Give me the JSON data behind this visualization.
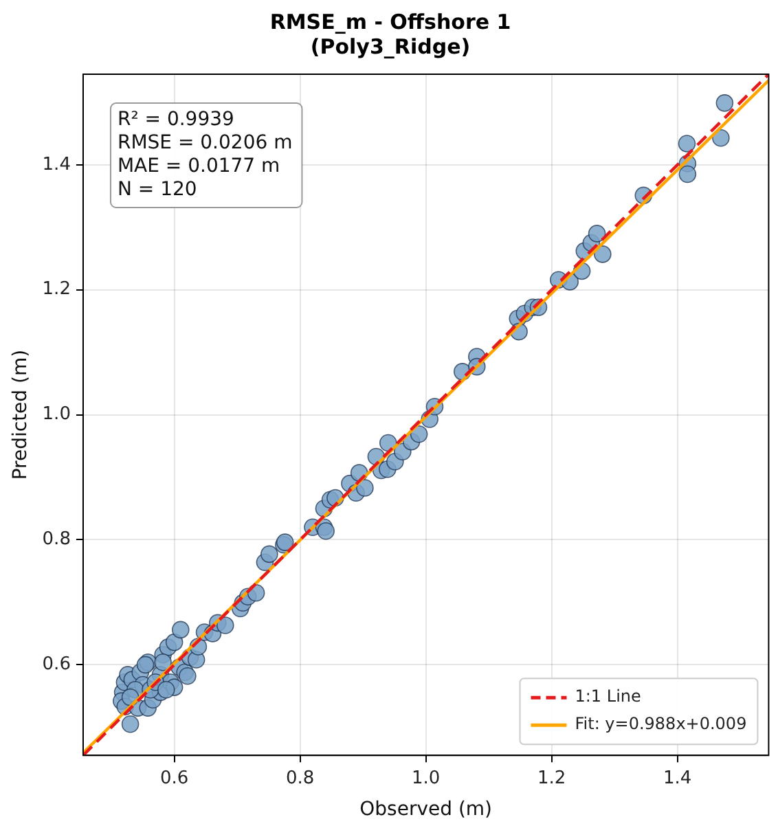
{
  "chart_data": {
    "type": "scatter",
    "title": "RMSE_m - Offshore 1",
    "subtitle": "(Poly3_Ridge)",
    "xlabel": "Observed (m)",
    "ylabel": "Predicted (m)",
    "xlim": [
      0.455,
      1.545
    ],
    "ylim": [
      0.455,
      1.545
    ],
    "xticks": [
      0.6,
      0.8,
      {
        "value": 1,
        "label": "1.0"
      },
      1.2,
      1.4
    ],
    "yticks": [
      0.6,
      0.8,
      {
        "value": 1,
        "label": "1.0"
      },
      1.2,
      1.4
    ],
    "grid": true,
    "legend": "bottom right",
    "annotations": [
      "R² = 0.9939",
      "RMSE = 0.0206 m",
      "MAE = 0.0177 m",
      "N = 120"
    ],
    "series": [
      {
        "color": "#7ba3c8",
        "marker": "circle",
        "x": [
          0.53,
          0.518,
          0.521,
          0.526,
          0.533,
          0.516,
          0.522,
          0.542,
          0.558,
          0.546,
          0.558,
          0.554,
          0.55,
          0.566,
          0.578,
          0.582,
          0.59,
          0.6,
          0.61,
          0.578,
          0.594,
          0.6,
          0.608,
          0.617,
          0.621,
          0.625,
          0.635,
          0.638,
          0.648,
          0.661,
          0.669,
          0.681,
          0.705,
          0.709,
          0.717,
          0.73,
          0.744,
          0.751,
          0.774,
          0.776,
          0.82,
          0.838,
          0.841,
          0.838,
          0.848,
          0.856,
          0.879,
          0.889,
          0.894,
          0.903,
          0.921,
          0.929,
          0.939,
          0.94,
          0.951,
          0.963,
          0.977,
          0.989,
          1.006,
          0.538,
          0.562,
          0.57,
          0.587,
          0.53,
          0.582,
          1.014,
          1.058,
          1.081,
          1.081,
          1.146,
          1.148,
          1.157,
          1.17,
          1.179,
          1.211,
          1.229,
          1.248,
          1.252,
          1.263,
          1.272,
          1.281,
          1.346,
          1.415,
          1.416,
          1.416,
          1.469,
          1.475
        ],
        "values": [
          0.505,
          0.556,
          0.572,
          0.584,
          0.576,
          0.542,
          0.533,
          0.531,
          0.531,
          0.588,
          0.604,
          0.6,
          0.568,
          0.544,
          0.556,
          0.616,
          0.628,
          0.636,
          0.656,
          0.584,
          0.572,
          0.564,
          0.596,
          0.588,
          0.582,
          0.612,
          0.608,
          0.629,
          0.652,
          0.65,
          0.667,
          0.663,
          0.69,
          0.699,
          0.709,
          0.715,
          0.764,
          0.777,
          0.792,
          0.796,
          0.82,
          0.82,
          0.814,
          0.85,
          0.864,
          0.867,
          0.89,
          0.875,
          0.907,
          0.883,
          0.933,
          0.911,
          0.913,
          0.955,
          0.925,
          0.941,
          0.957,
          0.969,
          0.993,
          0.56,
          0.56,
          0.572,
          0.56,
          0.548,
          0.604,
          1.013,
          1.069,
          1.093,
          1.077,
          1.154,
          1.133,
          1.162,
          1.172,
          1.172,
          1.216,
          1.213,
          1.23,
          1.262,
          1.275,
          1.29,
          1.257,
          1.351,
          1.434,
          1.402,
          1.385,
          1.443,
          1.499
        ]
      },
      {
        "type": "line",
        "name": "1:1 Line",
        "color": "#e41a1c",
        "line_style": "dashed",
        "marker": "none",
        "x": [
          0.455,
          1.545
        ],
        "values": [
          0.455,
          1.545
        ]
      },
      {
        "type": "line",
        "name": "Fit: y=0.988x+0.009",
        "color": "#ffa500",
        "line_style": "solid",
        "marker": "none",
        "x": [
          0.455,
          1.545
        ],
        "values": [
          0.459,
          1.535
        ]
      }
    ]
  }
}
